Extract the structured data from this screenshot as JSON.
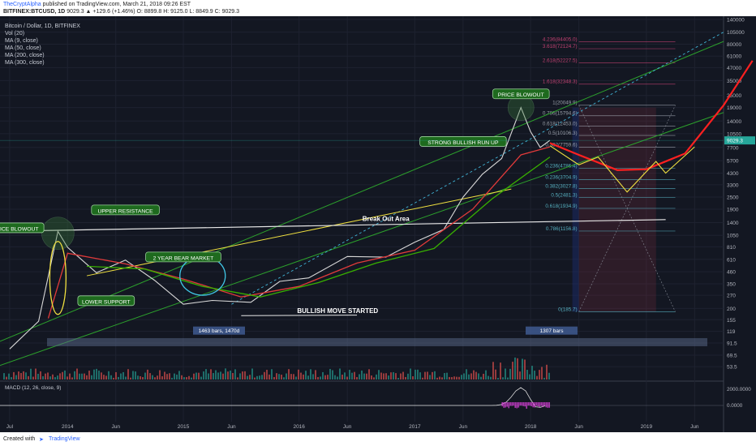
{
  "header": {
    "author": "TheCryptAlpha",
    "published": "published on TradingView.com, March 21, 2018 09:26 EST",
    "symbol": "BITFINEX:BTCUSD, 1D",
    "ohlc": "9029.3 ▲ +129.6 (+1.46%) O: 8899.8 H: 9125.0 L: 8849.9 C: 9029.3"
  },
  "legend": {
    "title": "Bitcoin / Dollar, 1D, BITFINEX",
    "items": [
      "Vol (20)",
      "MA (9, close)",
      "MA (50, close)",
      "MA (200, close)",
      "MA (300, close)"
    ]
  },
  "footer": {
    "created": "Created with",
    "brand": "TradingView"
  },
  "chart_data": {
    "type": "line",
    "title": "Bitcoin / Dollar, 1D, BITFINEX",
    "scale": "log",
    "ylim": [
      40,
      140000
    ],
    "y_ticks": [
      140000,
      105000,
      80000,
      61000,
      47000,
      35000,
      25000,
      19000,
      14000,
      10500,
      7700,
      5700,
      4300,
      3300,
      2500,
      1900,
      1400,
      1050,
      810,
      610,
      460,
      350,
      270,
      200,
      155,
      119,
      91.5,
      69.5,
      53.5
    ],
    "price_badge": "9029.3",
    "x_ticks": [
      "Jul",
      "2014",
      "Jun",
      "2015",
      "Jun",
      "2016",
      "Jun",
      "2017",
      "Jun",
      "2018",
      "Jun",
      "2019",
      "Jun"
    ],
    "price_series": {
      "name": "BTCUSD",
      "x": [
        "2013-07",
        "2013-10",
        "2013-12",
        "2014-01",
        "2014-04",
        "2014-07",
        "2014-10",
        "2015-01",
        "2015-04",
        "2015-08",
        "2015-11",
        "2016-02",
        "2016-06",
        "2016-10",
        "2017-01",
        "2017-04",
        "2017-06",
        "2017-08",
        "2017-10",
        "2017-12",
        "2018-01",
        "2018-02",
        "2018-03"
      ],
      "y": [
        80,
        150,
        1150,
        800,
        450,
        600,
        380,
        220,
        240,
        230,
        370,
        400,
        650,
        640,
        900,
        1200,
        2500,
        4200,
        6000,
        19000,
        11000,
        7700,
        9029
      ]
    },
    "ma_series": [
      {
        "color": "#e03a3a",
        "x": [
          "2013-11",
          "2014-01",
          "2014-07",
          "2015-01",
          "2015-07",
          "2016-01",
          "2016-07",
          "2017-01",
          "2017-07",
          "2017-12",
          "2018-03"
        ],
        "y": [
          160,
          700,
          550,
          390,
          260,
          330,
          560,
          750,
          1900,
          6500,
          7800
        ]
      },
      {
        "color": "#38b000",
        "x": [
          "2014-03",
          "2014-09",
          "2015-03",
          "2015-09",
          "2016-03",
          "2016-09",
          "2017-03",
          "2017-09",
          "2018-03"
        ],
        "y": [
          520,
          490,
          330,
          260,
          360,
          560,
          780,
          2400,
          6200
        ]
      }
    ],
    "projection": {
      "name": "projection",
      "x": [
        "2018-03",
        "2018-06",
        "2018-10",
        "2019-01",
        "2019-05",
        "2019-09",
        "2019-12"
      ],
      "y": [
        8500,
        6500,
        4600,
        4700,
        6700,
        20000,
        55000
      ]
    },
    "fib_levels": [
      {
        "label": "4.236(84405.0)",
        "value": 84405.0
      },
      {
        "label": "3.618(72124.7)",
        "value": 72124.7
      },
      {
        "label": "2.618(52227.5)",
        "value": 52227.5
      },
      {
        "label": "1.618(32348.3)",
        "value": 32348.3
      },
      {
        "label": "1(20049.9)",
        "value": 20049.9
      },
      {
        "label": "0.786(15794.6)",
        "value": 15794.6
      },
      {
        "label": "0.618(12453.0)",
        "value": 12453.0
      },
      {
        "label": "0.5(10106.3)",
        "value": 10106.3
      },
      {
        "label": "0.382(7759.6)",
        "value": 7759.6
      },
      {
        "label": "0.236(4786.4)",
        "value": 4786.4
      },
      {
        "label": "0.236(3704.9)",
        "value": 3704.9
      },
      {
        "label": "0.382(3027.8)",
        "value": 3027.8
      },
      {
        "label": "0.5(2481.3)",
        "value": 2481.3
      },
      {
        "label": "0.618(1934.9)",
        "value": 1934.9
      },
      {
        "label": "0.786(1156.8)",
        "value": 1156.8
      },
      {
        "label": "0(185.7)",
        "value": 185.7
      }
    ],
    "annotations": [
      {
        "text": "PRICE BLOWOUT",
        "x": "2017-12",
        "y": 25000
      },
      {
        "text": "STRONG BULLISH RUN UP",
        "x": "2017-06",
        "y": 8500
      },
      {
        "text": "UPPER RESISTANCE",
        "x": "2014-07",
        "y": 1800
      },
      {
        "text": "ICE BLOWOUT",
        "x": "2013-08",
        "y": 1200
      },
      {
        "text": "2 YEAR BEAR MARKET",
        "x": "2015-01",
        "y": 620
      },
      {
        "text": "LOWER SUPPORT",
        "x": "2014-05",
        "y": 230
      },
      {
        "text": "Break Out Area",
        "x": "2016-10",
        "y": 1450
      },
      {
        "text": "BULLISH MOVE STARTED",
        "x": "2016-05",
        "y": 180
      }
    ],
    "bars_labels": [
      "1463 bars, 1470d",
      "1307 bars"
    ],
    "macd": {
      "label": "MACD (12, 26, close, 9)",
      "ticks": [
        "2000.0000",
        "0.0000"
      ]
    }
  }
}
